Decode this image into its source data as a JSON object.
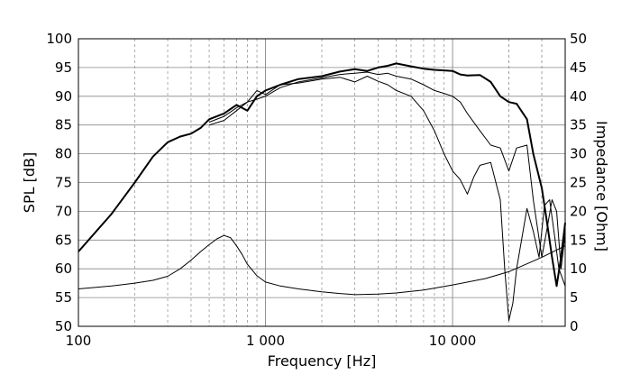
{
  "chart_data": {
    "type": "line",
    "xlabel": "Frequency [Hz]",
    "ylabel_left": "SPL [dB]",
    "ylabel_right": "Impedance [Ohm]",
    "x_scale": "log",
    "xlim": [
      100,
      40000
    ],
    "ylim_left": [
      50,
      100
    ],
    "ylim_right": [
      0,
      50
    ],
    "x_tick_values": [
      100,
      1000,
      10000
    ],
    "x_tick_labels": [
      "100",
      "1 000",
      "10 000"
    ],
    "y_left_ticks": [
      "100",
      "95",
      "90",
      "85",
      "80",
      "75",
      "70",
      "65",
      "60",
      "55",
      "50"
    ],
    "y_right_ticks": [
      "50",
      "45",
      "40",
      "35",
      "30",
      "25",
      "20",
      "15",
      "10",
      "5",
      "0"
    ],
    "grid": true,
    "series": [
      {
        "axis": "left",
        "style": "bold",
        "x": [
          100,
          150,
          200,
          250,
          300,
          350,
          400,
          450,
          500,
          600,
          700,
          800,
          900,
          1000,
          1200,
          1500,
          2000,
          2500,
          3000,
          3500,
          4000,
          4500,
          5000,
          6000,
          7000,
          8000,
          9000,
          10000,
          11000,
          12000,
          14000,
          16000,
          18000,
          20000,
          22000,
          25000,
          27000,
          30000,
          32000,
          34000,
          36000,
          38000,
          40000
        ],
        "y": [
          63,
          69.5,
          75,
          79.5,
          82,
          83,
          83.5,
          84.5,
          86,
          87,
          88.5,
          87.5,
          90,
          91,
          92,
          93,
          93.5,
          94.3,
          94.7,
          94.4,
          95,
          95.3,
          95.7,
          95.2,
          94.8,
          94.6,
          94.5,
          94.4,
          93.8,
          93.6,
          93.7,
          92.5,
          90,
          89,
          88.7,
          86,
          80,
          74,
          68,
          62,
          57,
          62,
          68
        ]
      },
      {
        "axis": "left",
        "style": "thin",
        "x": [
          500,
          600,
          700,
          800,
          900,
          1000,
          1200,
          1500,
          2000,
          2500,
          3000,
          3500,
          4000,
          4500,
          5000,
          6000,
          7000,
          8000,
          9000,
          10000,
          11000,
          12000,
          14000,
          16000,
          18000,
          20000,
          22000,
          25000,
          27000,
          30000,
          32000,
          34000,
          36000,
          38000,
          40000
        ],
        "y": [
          85,
          85.8,
          87.5,
          89,
          89.5,
          90,
          91.5,
          92.5,
          93.2,
          93.8,
          94,
          94.2,
          93.8,
          94,
          93.5,
          93,
          92,
          91,
          90.5,
          90,
          89,
          87,
          84,
          81.5,
          81,
          77,
          81,
          81.5,
          72,
          62,
          67,
          72,
          70,
          60,
          66
        ]
      },
      {
        "axis": "left",
        "style": "thin",
        "x": [
          500,
          600,
          700,
          800,
          900,
          1000,
          1200,
          1500,
          2000,
          2500,
          3000,
          3500,
          4000,
          4500,
          5000,
          6000,
          7000,
          8000,
          9000,
          10000,
          11000,
          12000,
          13000,
          14000,
          16000,
          18000,
          19000,
          20000,
          21000,
          22000,
          25000,
          27000,
          29000,
          31000,
          33000,
          35000,
          37000,
          40000
        ],
        "y": [
          85.5,
          86.5,
          88,
          89,
          91,
          90.3,
          92,
          92.3,
          93,
          93.3,
          92.5,
          93.5,
          92.6,
          92,
          91,
          90,
          87.5,
          84,
          80,
          77,
          75.5,
          73,
          76,
          78,
          78.5,
          72,
          60,
          51,
          54,
          60,
          70.5,
          66.5,
          62,
          71,
          72,
          66,
          60,
          57
        ]
      },
      {
        "axis": "right",
        "style": "thin",
        "x": [
          100,
          150,
          200,
          250,
          300,
          350,
          400,
          450,
          500,
          550,
          600,
          650,
          700,
          750,
          800,
          900,
          1000,
          1200,
          1500,
          2000,
          2500,
          3000,
          4000,
          5000,
          7000,
          10000,
          15000,
          20000,
          30000,
          40000
        ],
        "y": [
          6.5,
          7,
          7.5,
          8,
          8.7,
          10,
          11.5,
          13,
          14.2,
          15.2,
          15.8,
          15.4,
          14,
          12.5,
          10.8,
          8.8,
          7.7,
          7,
          6.5,
          6,
          5.7,
          5.5,
          5.6,
          5.8,
          6.3,
          7.2,
          8.3,
          9.5,
          12,
          14
        ]
      }
    ]
  }
}
